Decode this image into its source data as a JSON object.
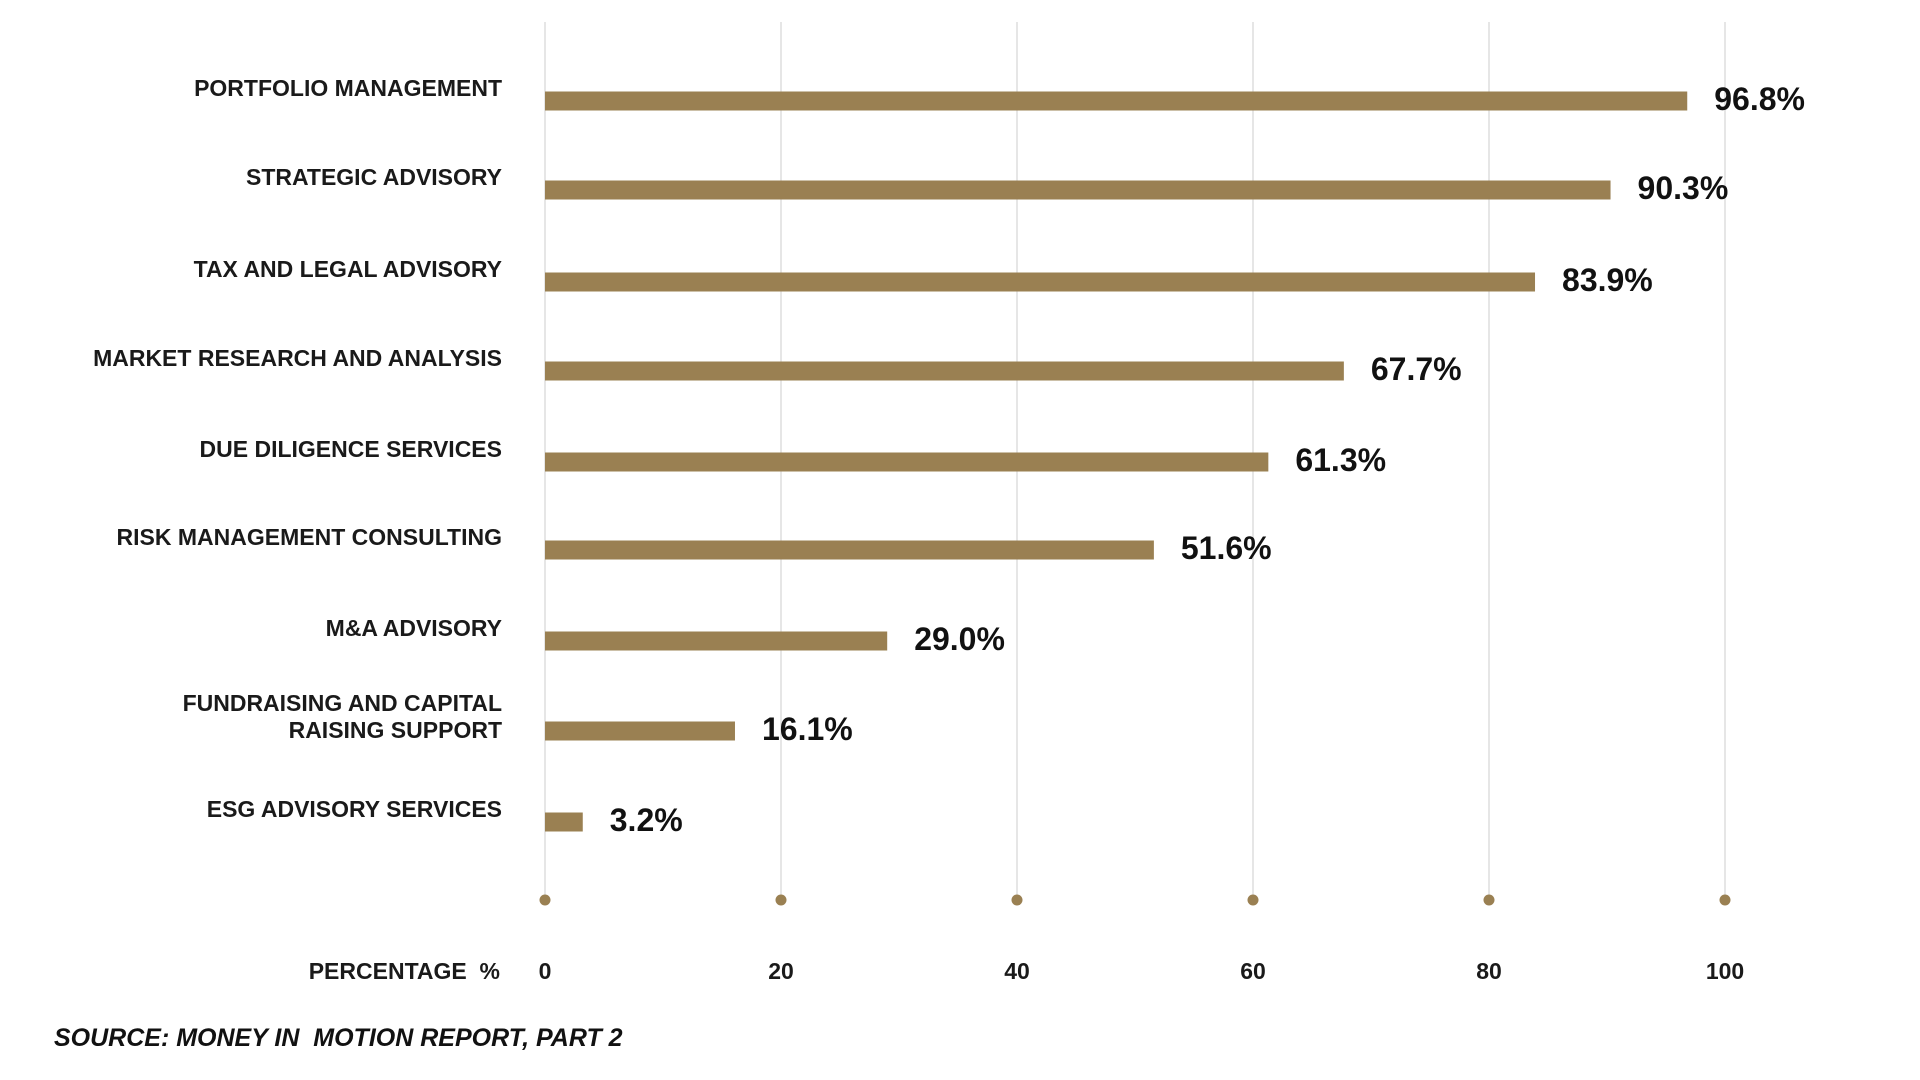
{
  "chart_data": {
    "type": "bar",
    "orientation": "horizontal",
    "categories": [
      "PORTFOLIO MANAGEMENT",
      "STRATEGIC ADVISORY",
      "TAX AND LEGAL ADVISORY",
      "MARKET RESEARCH AND ANALYSIS",
      "DUE DILIGENCE SERVICES",
      "RISK MANAGEMENT CONSULTING",
      "M&A ADVISORY",
      "FUNDRAISING AND CAPITAL RAISING SUPPORT",
      "ESG ADVISORY SERVICES"
    ],
    "category_lines": [
      [
        "PORTFOLIO MANAGEMENT"
      ],
      [
        "STRATEGIC ADVISORY"
      ],
      [
        "TAX AND LEGAL ADVISORY"
      ],
      [
        "MARKET RESEARCH AND ANALYSIS"
      ],
      [
        "DUE DILIGENCE SERVICES"
      ],
      [
        "RISK MANAGEMENT CONSULTING"
      ],
      [
        "M&A ADVISORY"
      ],
      [
        "FUNDRAISING AND CAPITAL",
        "RAISING SUPPORT"
      ],
      [
        "ESG ADVISORY SERVICES"
      ]
    ],
    "values": [
      96.8,
      90.3,
      83.9,
      67.7,
      61.3,
      51.6,
      29.0,
      16.1,
      3.2
    ],
    "value_labels": [
      "96.8%",
      "90.3%",
      "83.9%",
      "67.7%",
      "61.3%",
      "51.6%",
      "29.0%",
      "16.1%",
      "3.2%"
    ],
    "title": "",
    "xlabel": "PERCENTAGE  %",
    "ylabel": "",
    "xlim": [
      0,
      100
    ],
    "xticks": [
      0,
      20,
      40,
      60,
      80,
      100
    ],
    "xtick_labels": [
      "0",
      "20",
      "40",
      "60",
      "80",
      "100"
    ],
    "grid": "vertical",
    "legend": "none",
    "colors": {
      "bar": "#9a8052",
      "tick_dot": "#9a8052",
      "grid": "#dedede",
      "text": "#1a1a1a"
    }
  },
  "source": "SOURCE: MONEY IN  MOTION REPORT, PART 2"
}
